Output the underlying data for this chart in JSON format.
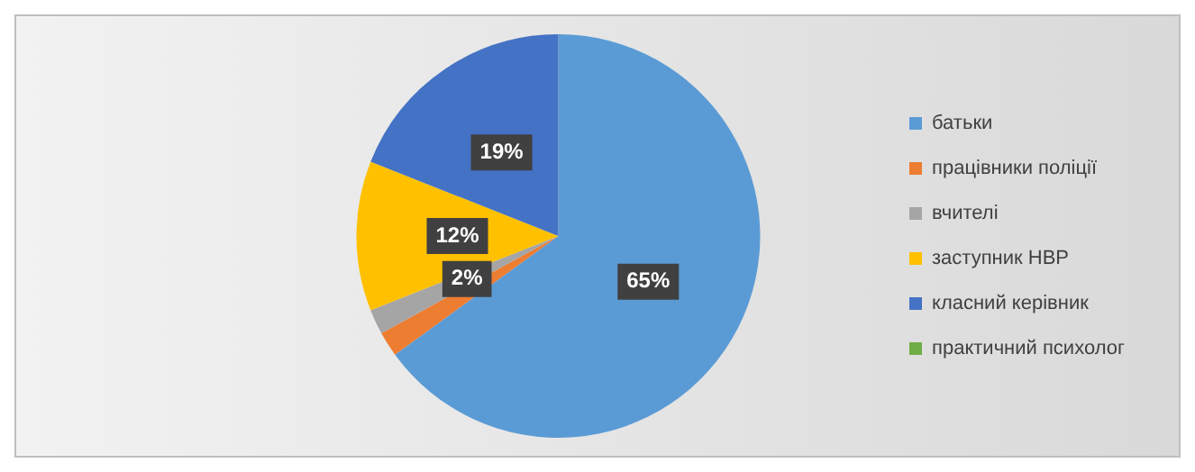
{
  "chart_data": {
    "type": "pie",
    "categories": [
      "батьки",
      "працівники поліції",
      "вчителі",
      "заступник НВР",
      "класний керівник",
      "практичний психолог"
    ],
    "values": [
      65,
      2,
      2,
      12,
      19,
      0
    ],
    "colors": [
      "#5b9bd5",
      "#ed7d31",
      "#a5a5a5",
      "#ffc000",
      "#4472c4",
      "#70ad47"
    ],
    "value_labels": [
      "65%",
      null,
      "2%",
      "12%",
      "19%",
      null
    ],
    "legend": "right"
  }
}
